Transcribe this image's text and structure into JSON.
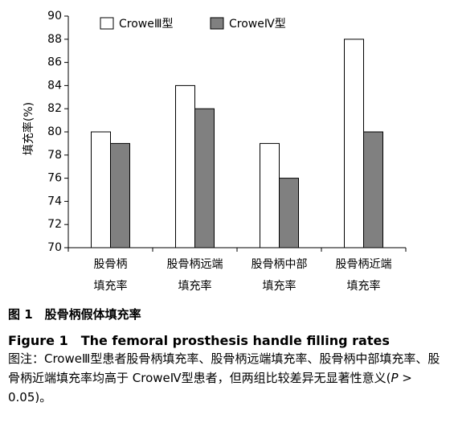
{
  "chart_data": {
    "type": "bar",
    "y_label": "填充率(%)",
    "categories": [
      "股骨柄\n填充率",
      "股骨柄远端\n填充率",
      "股骨柄中部\n填充率",
      "股骨柄近端\n填充率"
    ],
    "series": [
      {
        "name": "CroweⅢ型",
        "color": "#ffffff",
        "values": [
          80,
          84,
          79,
          88
        ]
      },
      {
        "name": "CroweⅣ型",
        "color": "#808080",
        "values": [
          79,
          82,
          76,
          80
        ]
      }
    ],
    "ylim": [
      70,
      90
    ],
    "yticks": [
      70,
      72,
      74,
      76,
      78,
      80,
      82,
      84,
      86,
      88,
      90
    ],
    "grid": false
  },
  "caption": {
    "title_cn": "图 1　股骨柄假体填充率",
    "title_en": "Figure 1　The femoral prosthesis handle filling rates",
    "note": [
      "图注：CroweⅢ型患者股骨柄填充率、股骨柄远端填充率、股骨柄中部填充率、股骨柄近端填充率均高于 CroweⅣ型患者，但两组比较差异无显著性意义(",
      "P",
      " > 0.05)。"
    ]
  }
}
